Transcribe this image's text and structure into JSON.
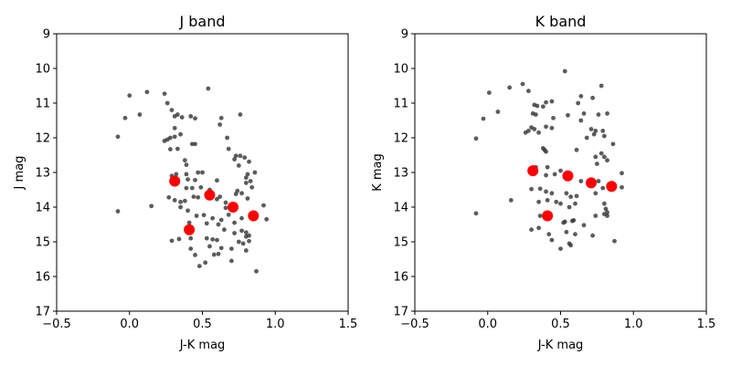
{
  "chart_data": [
    {
      "type": "scatter",
      "title": "J band",
      "xlabel": "J-K mag",
      "ylabel": "J mag",
      "xlim": [
        -0.5,
        1.5
      ],
      "ylim": [
        17,
        9
      ],
      "y_inverted": true,
      "xticks": [
        -0.5,
        0.0,
        0.5,
        1.0,
        1.5
      ],
      "xtick_labels": [
        "−0.5",
        "0.0",
        "0.5",
        "1.0",
        "1.5"
      ],
      "yticks": [
        9,
        10,
        11,
        12,
        13,
        14,
        15,
        16,
        17
      ],
      "ytick_labels": [
        "9",
        "10",
        "11",
        "12",
        "13",
        "14",
        "15",
        "16",
        "17"
      ],
      "grid": false,
      "series": [
        {
          "color": "#333333",
          "marker": "small-dot",
          "points": [
            [
              0.0,
              10.78
            ],
            [
              0.12,
              10.68
            ],
            [
              0.24,
              10.73
            ],
            [
              0.54,
              10.58
            ],
            [
              -0.03,
              11.43
            ],
            [
              0.07,
              11.33
            ],
            [
              0.26,
              11.0
            ],
            [
              0.29,
              11.2
            ],
            [
              0.31,
              11.38
            ],
            [
              0.33,
              11.33
            ],
            [
              0.36,
              11.41
            ],
            [
              0.42,
              11.38
            ],
            [
              0.45,
              11.44
            ],
            [
              0.63,
              11.43
            ],
            [
              0.76,
              11.33
            ],
            [
              -0.08,
              11.97
            ],
            [
              0.31,
              11.72
            ],
            [
              0.24,
              12.09
            ],
            [
              0.26,
              12.05
            ],
            [
              0.28,
              12.0
            ],
            [
              0.31,
              11.97
            ],
            [
              0.35,
              11.9
            ],
            [
              0.62,
              11.62
            ],
            [
              0.43,
              12.18
            ],
            [
              0.45,
              12.18
            ],
            [
              0.67,
              12.0
            ],
            [
              0.28,
              12.33
            ],
            [
              0.33,
              12.32
            ],
            [
              0.68,
              12.32
            ],
            [
              0.38,
              12.65
            ],
            [
              0.73,
              12.52
            ],
            [
              0.76,
              12.52
            ],
            [
              0.72,
              12.62
            ],
            [
              0.79,
              12.57
            ],
            [
              0.82,
              12.69
            ],
            [
              0.39,
              12.78
            ],
            [
              0.75,
              12.8
            ],
            [
              0.29,
              13.1
            ],
            [
              0.32,
              13.05
            ],
            [
              0.39,
              13.05
            ],
            [
              0.4,
              13.2
            ],
            [
              0.47,
              13.0
            ],
            [
              0.5,
              13.0
            ],
            [
              0.6,
              13.23
            ],
            [
              0.8,
              13.15
            ],
            [
              0.81,
              13.05
            ],
            [
              0.86,
              13.0
            ],
            [
              0.83,
              13.25
            ],
            [
              0.8,
              13.3
            ],
            [
              0.84,
              13.43
            ],
            [
              0.45,
              13.22
            ],
            [
              0.39,
              13.45
            ],
            [
              0.43,
              13.45
            ],
            [
              0.49,
              13.43
            ],
            [
              0.55,
              13.5
            ],
            [
              0.74,
              13.53
            ],
            [
              0.77,
              13.6
            ],
            [
              0.73,
              13.62
            ],
            [
              0.27,
              13.72
            ],
            [
              0.31,
              13.8
            ],
            [
              0.35,
              13.85
            ],
            [
              0.38,
              13.82
            ],
            [
              0.44,
              13.7
            ],
            [
              0.47,
              13.72
            ],
            [
              0.62,
              13.7
            ],
            [
              0.6,
              13.77
            ],
            [
              0.81,
              13.75
            ],
            [
              0.66,
              13.87
            ],
            [
              0.66,
              14.02
            ],
            [
              0.92,
              13.95
            ],
            [
              -0.08,
              14.12
            ],
            [
              0.15,
              13.97
            ],
            [
              0.35,
              14.0
            ],
            [
              0.4,
              14.1
            ],
            [
              0.46,
              14.25
            ],
            [
              0.51,
              14.23
            ],
            [
              0.57,
              14.32
            ],
            [
              0.63,
              14.37
            ],
            [
              0.68,
              14.22
            ],
            [
              0.72,
              14.45
            ],
            [
              0.77,
              14.32
            ],
            [
              0.94,
              14.35
            ],
            [
              0.41,
              14.45
            ],
            [
              0.53,
              14.47
            ],
            [
              0.61,
              14.5
            ],
            [
              0.72,
              14.75
            ],
            [
              0.65,
              14.65
            ],
            [
              0.77,
              14.68
            ],
            [
              0.8,
              14.73
            ],
            [
              0.8,
              14.85
            ],
            [
              0.82,
              14.82
            ],
            [
              0.29,
              14.97
            ],
            [
              0.34,
              14.92
            ],
            [
              0.42,
              14.9
            ],
            [
              0.53,
              14.9
            ],
            [
              0.57,
              14.93
            ],
            [
              0.6,
              14.95
            ],
            [
              0.75,
              15.0
            ],
            [
              0.82,
              14.98
            ],
            [
              0.78,
              15.05
            ],
            [
              0.55,
              15.13
            ],
            [
              0.63,
              15.18
            ],
            [
              0.7,
              15.2
            ],
            [
              0.8,
              15.25
            ],
            [
              0.42,
              15.2
            ],
            [
              0.45,
              15.38
            ],
            [
              0.58,
              15.37
            ],
            [
              0.61,
              15.35
            ],
            [
              0.52,
              15.6
            ],
            [
              0.48,
              15.7
            ],
            [
              0.7,
              15.55
            ],
            [
              0.87,
              15.85
            ]
          ]
        },
        {
          "color": "#ff0000",
          "marker": "large-dot",
          "points": [
            [
              0.31,
              13.25
            ],
            [
              0.55,
              13.65
            ],
            [
              0.71,
              14.0
            ],
            [
              0.85,
              14.25
            ],
            [
              0.41,
              14.65
            ]
          ]
        }
      ]
    },
    {
      "type": "scatter",
      "title": "K band",
      "xlabel": "J-K mag",
      "ylabel": "K mag",
      "xlim": [
        -0.5,
        1.5
      ],
      "ylim": [
        17,
        9
      ],
      "y_inverted": true,
      "xticks": [
        -0.5,
        0.0,
        0.5,
        1.0,
        1.5
      ],
      "xtick_labels": [
        "−0.5",
        "0.0",
        "0.5",
        "1.0",
        "1.5"
      ],
      "yticks": [
        9,
        10,
        11,
        12,
        13,
        14,
        15,
        16,
        17
      ],
      "ytick_labels": [
        "9",
        "10",
        "11",
        "12",
        "13",
        "14",
        "15",
        "16",
        "17"
      ],
      "grid": false,
      "series": [
        {
          "color": "#333333",
          "marker": "small-dot",
          "points": [
            [
              0.53,
              10.08
            ],
            [
              0.24,
              10.45
            ],
            [
              0.78,
              10.5
            ],
            [
              0.15,
              10.55
            ],
            [
              0.01,
              10.7
            ],
            [
              0.28,
              10.65
            ],
            [
              0.64,
              10.8
            ],
            [
              0.72,
              10.85
            ],
            [
              0.32,
              11.05
            ],
            [
              0.34,
              11.08
            ],
            [
              0.4,
              10.98
            ],
            [
              0.44,
              10.95
            ],
            [
              0.38,
              11.1
            ],
            [
              0.62,
              11.0
            ],
            [
              0.07,
              11.25
            ],
            [
              -0.03,
              11.45
            ],
            [
              0.31,
              11.3
            ],
            [
              0.33,
              11.33
            ],
            [
              0.45,
              11.43
            ],
            [
              0.55,
              11.35
            ],
            [
              0.66,
              11.3
            ],
            [
              0.76,
              11.33
            ],
            [
              0.82,
              11.3
            ],
            [
              0.64,
              11.5
            ],
            [
              0.4,
              11.68
            ],
            [
              0.44,
              11.72
            ],
            [
              0.26,
              11.85
            ],
            [
              0.28,
              11.8
            ],
            [
              0.3,
              11.7
            ],
            [
              0.32,
              11.75
            ],
            [
              0.35,
              11.85
            ],
            [
              0.71,
              11.75
            ],
            [
              0.74,
              11.8
            ],
            [
              0.73,
              11.9
            ],
            [
              0.79,
              11.8
            ],
            [
              0.8,
              11.95
            ],
            [
              0.68,
              12.0
            ],
            [
              -0.08,
              12.02
            ],
            [
              0.38,
              12.3
            ],
            [
              0.39,
              12.35
            ],
            [
              0.4,
              12.4
            ],
            [
              0.86,
              12.18
            ],
            [
              0.61,
              12.35
            ],
            [
              0.78,
              12.45
            ],
            [
              0.8,
              12.55
            ],
            [
              0.82,
              12.65
            ],
            [
              0.74,
              12.55
            ],
            [
              0.75,
              12.75
            ],
            [
              0.33,
              12.85
            ],
            [
              0.41,
              12.85
            ],
            [
              0.5,
              12.95
            ],
            [
              0.4,
              13.08
            ],
            [
              0.46,
              13.05
            ],
            [
              0.53,
              13.08
            ],
            [
              0.92,
              13.02
            ],
            [
              0.64,
              13.25
            ],
            [
              0.76,
              13.25
            ],
            [
              0.79,
              13.45
            ],
            [
              0.85,
              13.35
            ],
            [
              0.92,
              13.43
            ],
            [
              0.3,
              13.48
            ],
            [
              0.36,
              13.47
            ],
            [
              0.4,
              13.55
            ],
            [
              0.44,
              13.6
            ],
            [
              0.54,
              13.6
            ],
            [
              0.57,
              13.7
            ],
            [
              0.61,
              13.68
            ],
            [
              0.74,
              13.6
            ],
            [
              0.16,
              13.8
            ],
            [
              0.35,
              13.85
            ],
            [
              0.41,
              13.8
            ],
            [
              0.47,
              13.85
            ],
            [
              0.5,
              13.9
            ],
            [
              0.56,
              14.0
            ],
            [
              0.6,
              13.9
            ],
            [
              0.8,
              13.9
            ],
            [
              0.81,
              14.05
            ],
            [
              0.8,
              14.2
            ],
            [
              0.82,
              14.25
            ],
            [
              0.74,
              14.25
            ],
            [
              -0.08,
              14.18
            ],
            [
              0.36,
              14.25
            ],
            [
              0.53,
              14.42
            ],
            [
              0.58,
              14.4
            ],
            [
              0.59,
              14.38
            ],
            [
              0.66,
              14.52
            ],
            [
              0.3,
              14.65
            ],
            [
              0.35,
              14.6
            ],
            [
              0.52,
              14.45
            ],
            [
              0.42,
              14.78
            ],
            [
              0.54,
              14.72
            ],
            [
              0.6,
              14.78
            ],
            [
              0.72,
              14.82
            ],
            [
              0.87,
              14.98
            ],
            [
              0.44,
              14.95
            ],
            [
              0.56,
              15.05
            ],
            [
              0.5,
              15.2
            ],
            [
              0.57,
              15.1
            ],
            [
              0.82,
              14.15
            ]
          ]
        },
        {
          "color": "#ff0000",
          "marker": "large-dot",
          "points": [
            [
              0.31,
              12.95
            ],
            [
              0.55,
              13.1
            ],
            [
              0.71,
              13.3
            ],
            [
              0.85,
              13.4
            ],
            [
              0.41,
              14.25
            ]
          ]
        }
      ]
    }
  ]
}
